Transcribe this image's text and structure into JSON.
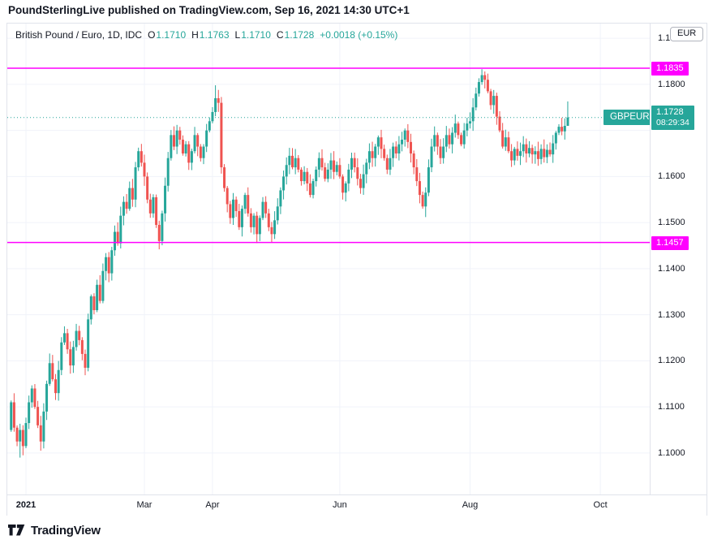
{
  "header": {
    "text": "PoundSterlingLive published on TradingView.com, Sep 16, 2021 14:30 UTC+1"
  },
  "title": {
    "instrument": "British Pound / Euro, 1D, IDC",
    "o_label": "O",
    "o": "1.1710",
    "h_label": "H",
    "h": "1.1763",
    "l_label": "L",
    "l": "1.1710",
    "c_label": "C",
    "c": "1.1728",
    "change": "+0.0018 (+0.15%)"
  },
  "price_axis": {
    "currency_button": "EUR",
    "ticks": [
      "1.1900",
      "1.1800",
      "1.1600",
      "1.1500",
      "1.1400",
      "1.1300",
      "1.1200",
      "1.1100",
      "1.1000"
    ]
  },
  "footer": {
    "brand": "TradingView"
  },
  "chart_data": {
    "type": "candlestick",
    "symbol": "GBPEUR",
    "timeframe": "1D",
    "title": "British Pound / Euro, 1D, IDC",
    "ylim": [
      1.091,
      1.1932
    ],
    "grid_step": 0.01,
    "open_first": 1.105,
    "closes": [
      1.111,
      1.1055,
      1.1025,
      1.105,
      1.1015,
      1.1065,
      1.111,
      1.114,
      1.11,
      1.106,
      1.1025,
      1.109,
      1.115,
      1.1195,
      1.116,
      1.113,
      1.118,
      1.124,
      1.126,
      1.1225,
      1.119,
      1.123,
      1.1265,
      1.1245,
      1.1215,
      1.1185,
      1.129,
      1.134,
      1.131,
      1.1365,
      1.133,
      1.1395,
      1.1425,
      1.139,
      1.144,
      1.148,
      1.1455,
      1.1515,
      1.1545,
      1.153,
      1.1575,
      1.155,
      1.162,
      1.1655,
      1.163,
      1.16,
      1.155,
      1.152,
      1.1555,
      1.1495,
      1.146,
      1.152,
      1.158,
      1.164,
      1.169,
      1.1665,
      1.17,
      1.168,
      1.165,
      1.167,
      1.163,
      1.1655,
      1.169,
      1.1665,
      1.164,
      1.1665,
      1.17,
      1.172,
      1.174,
      1.177,
      1.176,
      1.162,
      1.1575,
      1.154,
      1.151,
      1.155,
      1.1525,
      1.149,
      1.153,
      1.156,
      1.152,
      1.149,
      1.1515,
      1.1475,
      1.151,
      1.1545,
      1.152,
      1.149,
      1.1475,
      1.1505,
      1.1535,
      1.157,
      1.16,
      1.1625,
      1.1645,
      1.162,
      1.164,
      1.1615,
      1.159,
      1.161,
      1.1585,
      1.156,
      1.159,
      1.1615,
      1.164,
      1.162,
      1.1595,
      1.1615,
      1.1635,
      1.161,
      1.1625,
      1.16,
      1.1565,
      1.1585,
      1.1615,
      1.164,
      1.162,
      1.1595,
      1.1575,
      1.1605,
      1.163,
      1.1655,
      1.164,
      1.1665,
      1.1685,
      1.166,
      1.164,
      1.1615,
      1.164,
      1.1665,
      1.165,
      1.167,
      1.168,
      1.17,
      1.1675,
      1.165,
      1.162,
      1.159,
      1.156,
      1.1535,
      1.1565,
      1.162,
      1.1665,
      1.169,
      1.1665,
      1.164,
      1.1665,
      1.169,
      1.167,
      1.1695,
      1.1715,
      1.169,
      1.167,
      1.17,
      1.1715,
      1.172,
      1.175,
      1.178,
      1.1805,
      1.182,
      1.181,
      1.1785,
      1.1755,
      1.1775,
      1.173,
      1.17,
      1.1665,
      1.1685,
      1.1655,
      1.1635,
      1.166,
      1.1645,
      1.1655,
      1.167,
      1.165,
      1.1662,
      1.1648,
      1.1655,
      1.1638,
      1.166,
      1.1642,
      1.1658,
      1.1648,
      1.1672,
      1.1695,
      1.1708,
      1.1698,
      1.171,
      1.1728
    ],
    "wick_overrides": {
      "3": {
        "l": 1.099
      },
      "4": {
        "l": 1.0995
      },
      "10": {
        "l": 1.1005
      },
      "50": {
        "l": 1.1442
      },
      "69": {
        "h": 1.1798
      },
      "70": {
        "h": 1.1788
      },
      "140": {
        "l": 1.1512
      },
      "159": {
        "h": 1.1833
      },
      "160": {
        "h": 1.1828
      },
      "188": {
        "h": 1.1763,
        "l": 1.171
      }
    },
    "month_ticks": [
      {
        "label": "2021",
        "index": 5,
        "bold": true
      },
      {
        "label": "Mar",
        "index": 45
      },
      {
        "label": "Apr",
        "index": 68
      },
      {
        "label": "Jun",
        "index": 111
      },
      {
        "label": "Aug",
        "index": 155
      },
      {
        "label": "Oct",
        "index": 199
      }
    ],
    "levels": [
      {
        "price": "1.1835",
        "value": 1.1835,
        "color": "#ff00ff",
        "style": "solid"
      },
      {
        "price": "1.1457",
        "value": 1.1457,
        "color": "#ff00ff",
        "style": "solid"
      },
      {
        "price": "1.1728",
        "value": 1.1728,
        "color": "#26a69a",
        "style": "dotted",
        "label": "GBPEUR",
        "countdown": "08:29:34"
      }
    ],
    "last": {
      "open": 1.171,
      "high": 1.1763,
      "low": 1.171,
      "close": 1.1728,
      "change": "+0.0018",
      "change_pct": "+0.15%",
      "countdown": "08:29:34"
    },
    "colors": {
      "up": "#26a69a",
      "down": "#ef5350",
      "level_magenta": "#ff00ff",
      "grid": "#f0f3fa",
      "axis_text": "#131722",
      "badge_teal": "#26a69a"
    },
    "legend_position": "top-left",
    "grid": true
  }
}
